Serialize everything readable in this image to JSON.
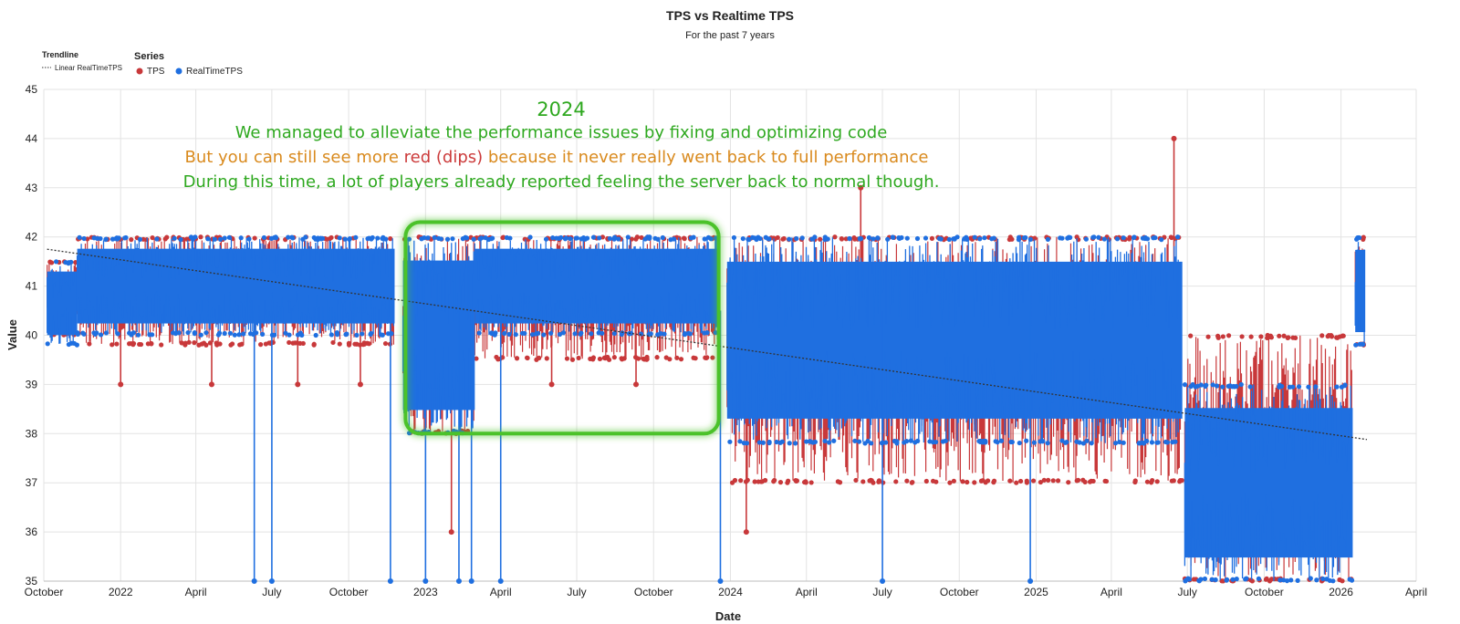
{
  "chart_data": {
    "type": "line",
    "title": "TPS vs Realtime TPS",
    "subtitle": "For the past 7 years",
    "xlabel": "Date",
    "ylabel": "Value",
    "ylim": [
      35,
      45
    ],
    "yticks": [
      35,
      36,
      37,
      38,
      39,
      40,
      41,
      42,
      43,
      44,
      45
    ],
    "xlim": [
      "2021-10-01",
      "2026-04-01"
    ],
    "xticks": [
      {
        "date": "2021-10-01",
        "label": "October"
      },
      {
        "date": "2022-01-01",
        "label": "2022"
      },
      {
        "date": "2022-04-01",
        "label": "April"
      },
      {
        "date": "2022-07-01",
        "label": "July"
      },
      {
        "date": "2022-10-01",
        "label": "October"
      },
      {
        "date": "2023-01-01",
        "label": "2023"
      },
      {
        "date": "2023-04-01",
        "label": "April"
      },
      {
        "date": "2023-07-01",
        "label": "July"
      },
      {
        "date": "2023-10-01",
        "label": "October"
      },
      {
        "date": "2024-01-01",
        "label": "2024"
      },
      {
        "date": "2024-04-01",
        "label": "April"
      },
      {
        "date": "2024-07-01",
        "label": "July"
      },
      {
        "date": "2024-10-01",
        "label": "October"
      },
      {
        "date": "2025-01-01",
        "label": "2025"
      },
      {
        "date": "2025-04-01",
        "label": "April"
      },
      {
        "date": "2025-07-01",
        "label": "July"
      },
      {
        "date": "2025-10-01",
        "label": "October"
      },
      {
        "date": "2026-01-01",
        "label": "2026"
      },
      {
        "date": "2026-04-01",
        "label": "April"
      }
    ],
    "grid": true,
    "legend": {
      "trendline_title": "Trendline",
      "trendline_label": "Linear RealTimeTPS",
      "series_title": "Series",
      "placement": "top-left"
    },
    "series": [
      {
        "name": "TPS",
        "color": "#c8383a",
        "bands": [
          {
            "from": "2021-10-05",
            "to": "2021-11-10",
            "low": 40.0,
            "high": 41.5
          },
          {
            "from": "2021-11-10",
            "to": "2022-11-25",
            "low": 39.8,
            "high": 42.0
          },
          {
            "from": "2022-12-05",
            "to": "2023-03-01",
            "low": 38.0,
            "high": 42.0
          },
          {
            "from": "2023-03-01",
            "to": "2023-12-20",
            "low": 39.5,
            "high": 42.0
          },
          {
            "from": "2023-12-28",
            "to": "2025-06-25",
            "low": 37.0,
            "high": 42.0
          },
          {
            "from": "2025-06-28",
            "to": "2026-01-15",
            "low": 35.0,
            "high": 40.0
          },
          {
            "from": "2026-01-18",
            "to": "2026-01-30",
            "low": 39.8,
            "high": 42.0
          }
        ],
        "spikes": [
          {
            "date": "2022-01-01",
            "value": 39
          },
          {
            "date": "2022-04-20",
            "value": 39
          },
          {
            "date": "2022-08-01",
            "value": 39
          },
          {
            "date": "2022-10-15",
            "value": 39
          },
          {
            "date": "2023-02-01",
            "value": 36
          },
          {
            "date": "2023-06-01",
            "value": 39
          },
          {
            "date": "2023-09-10",
            "value": 39
          },
          {
            "date": "2024-01-20",
            "value": 36
          },
          {
            "date": "2024-06-05",
            "value": 43
          },
          {
            "date": "2025-06-15",
            "value": 44
          }
        ]
      },
      {
        "name": "RealTimeTPS",
        "color": "#1f6fe0",
        "bands": [
          {
            "from": "2021-10-05",
            "to": "2021-11-10",
            "low": 39.8,
            "high": 41.5
          },
          {
            "from": "2021-11-10",
            "to": "2022-11-25",
            "low": 40.0,
            "high": 42.0
          },
          {
            "from": "2022-12-05",
            "to": "2023-03-01",
            "low": 38.0,
            "high": 42.0
          },
          {
            "from": "2023-03-01",
            "to": "2023-12-20",
            "low": 40.0,
            "high": 42.0
          },
          {
            "from": "2023-12-28",
            "to": "2025-06-25",
            "low": 37.8,
            "high": 42.0
          },
          {
            "from": "2025-06-28",
            "to": "2026-01-15",
            "low": 35.0,
            "high": 39.0
          },
          {
            "from": "2026-01-18",
            "to": "2026-01-30",
            "low": 39.8,
            "high": 42.0
          }
        ],
        "spikes": [
          {
            "date": "2022-06-10",
            "value": 35
          },
          {
            "date": "2022-07-01",
            "value": 35
          },
          {
            "date": "2022-11-20",
            "value": 35
          },
          {
            "date": "2023-01-01",
            "value": 35
          },
          {
            "date": "2023-02-10",
            "value": 35
          },
          {
            "date": "2023-02-25",
            "value": 35
          },
          {
            "date": "2023-04-01",
            "value": 35
          },
          {
            "date": "2023-12-20",
            "value": 35
          },
          {
            "date": "2024-07-01",
            "value": 35
          },
          {
            "date": "2024-12-25",
            "value": 35
          }
        ]
      }
    ],
    "trendline": {
      "series": "RealTimeTPS",
      "start": {
        "date": "2021-10-05",
        "value": 41.75
      },
      "end": {
        "date": "2026-02-01",
        "value": 37.88
      },
      "color": "#333333"
    },
    "annotation": {
      "lines": [
        {
          "text": "2024",
          "color": "#2ea81f"
        },
        {
          "text": "We managed to alleviate the performance issues by fixing and optimizing code",
          "color": "#2ea81f"
        },
        {
          "parts": [
            {
              "text": "But you can still see more ",
              "color": "#d98a1e"
            },
            {
              "text": "red (dips)",
              "color": "#cc3b3b"
            },
            {
              "text": " because it never really went back to full performance",
              "color": "#d98a1e"
            }
          ]
        },
        {
          "text": "During this time, a lot of players already reported feeling the server back to normal though.",
          "color": "#2ea81f"
        }
      ],
      "highlight": {
        "from": "2022-12-08",
        "to": "2023-12-18",
        "low": 38.0,
        "high": 42.3,
        "color": "#4cc22a"
      }
    }
  }
}
